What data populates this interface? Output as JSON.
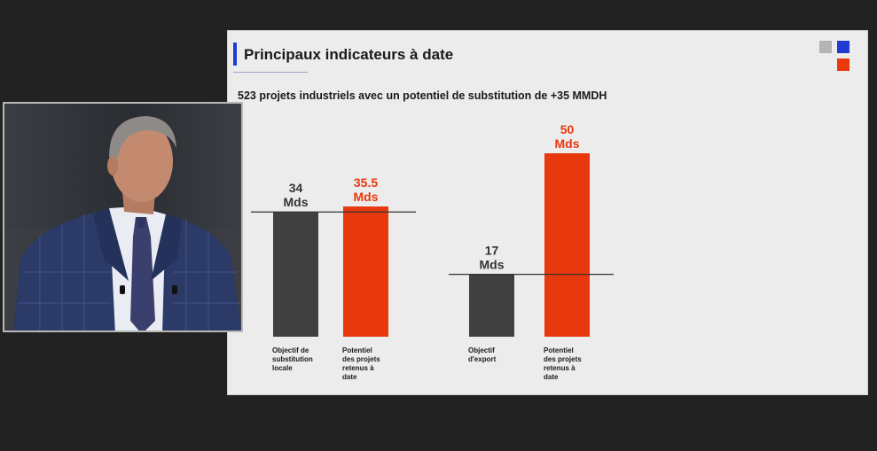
{
  "slide": {
    "title": "Principaux indicateurs à date",
    "subtitle": "523 projets industriels avec un potentiel de substitution de +35 MMDH",
    "colors": {
      "accent_blue": "#1f3bd1",
      "accent_orange": "#e8380d",
      "bar_grey": "#404040",
      "logo_grey": "#b4b4b4"
    }
  },
  "chart_data": [
    {
      "type": "bar",
      "categories": [
        "Objectif de substitution locale",
        "Potentiel des projets retenus à date"
      ],
      "values": [
        34,
        35.5
      ],
      "data_labels": [
        "34 Mds",
        "35.5 Mds"
      ],
      "reference_line": 34,
      "bar_colors": [
        "#404040",
        "#e8380d"
      ],
      "label_colors": [
        "#333333",
        "#e8380d"
      ],
      "category_label_lines": [
        [
          "Objectif de",
          "substitution",
          "locale"
        ],
        [
          "Potentiel",
          "des projets",
          "retenus à",
          "date"
        ]
      ],
      "unit": "Mds"
    },
    {
      "type": "bar",
      "categories": [
        "Objectif d'export",
        "Potentiel des projets retenus à date"
      ],
      "values": [
        17,
        50
      ],
      "data_labels": [
        "17 Mds",
        "50 Mds"
      ],
      "reference_line": 17,
      "bar_colors": [
        "#404040",
        "#e8380d"
      ],
      "label_colors": [
        "#333333",
        "#e8380d"
      ],
      "category_label_lines": [
        [
          "Objectif",
          "d'export"
        ],
        [
          "Potentiel",
          "des projets",
          "retenus à",
          "date"
        ]
      ],
      "unit": "Mds"
    }
  ],
  "video_inset": {
    "description_icon": "speaker-video"
  }
}
